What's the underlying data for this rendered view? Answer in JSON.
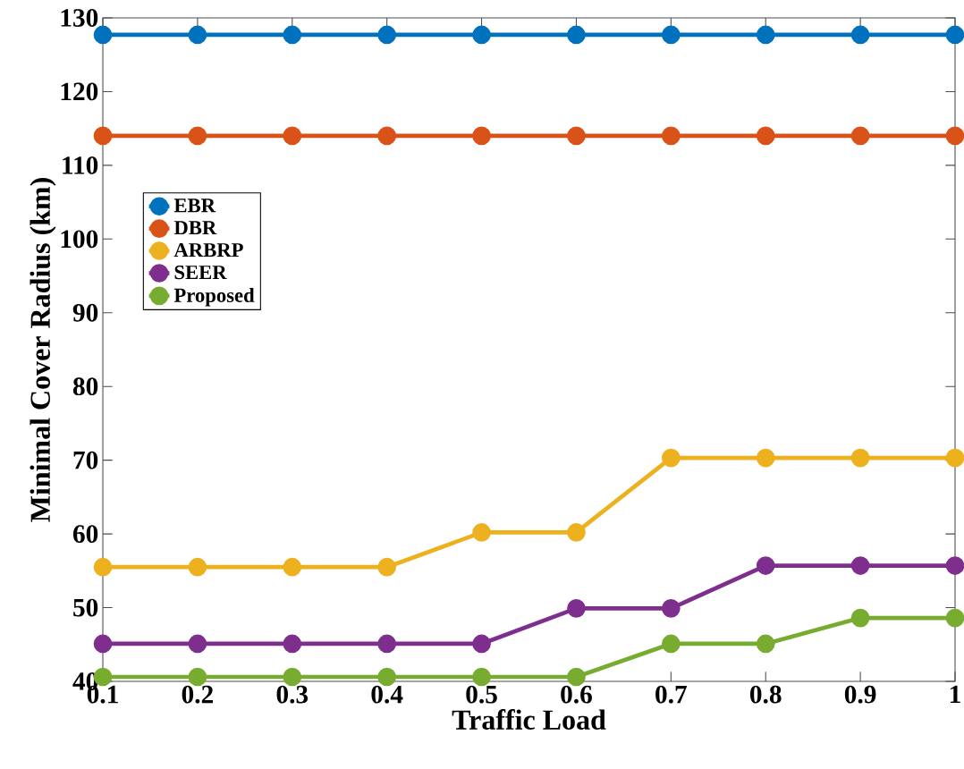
{
  "chart_data": {
    "type": "line",
    "xlabel": "Traffic Load",
    "ylabel": "Minimal Cover Radius (km)",
    "x": [
      0.1,
      0.2,
      0.3,
      0.4,
      0.5,
      0.6,
      0.7,
      0.8,
      0.9,
      1
    ],
    "series": [
      {
        "name": "EBR",
        "color": "#0072bd",
        "values": [
          127.7,
          127.7,
          127.7,
          127.7,
          127.7,
          127.7,
          127.7,
          127.7,
          127.7,
          127.7
        ]
      },
      {
        "name": "DBR",
        "color": "#d95319",
        "values": [
          114,
          114,
          114,
          114,
          114,
          114,
          114,
          114,
          114,
          114
        ]
      },
      {
        "name": "ARBRP",
        "color": "#edb120",
        "values": [
          55.5,
          55.5,
          55.5,
          55.5,
          60.2,
          60.2,
          70.3,
          70.3,
          70.3,
          70.3
        ]
      },
      {
        "name": "SEER",
        "color": "#7e2f8e",
        "values": [
          45.1,
          45.1,
          45.1,
          45.1,
          45.1,
          49.9,
          49.9,
          55.7,
          55.7,
          55.7
        ]
      },
      {
        "name": "Proposed",
        "color": "#77ac30",
        "values": [
          40.6,
          40.6,
          40.6,
          40.6,
          40.6,
          40.6,
          45.1,
          45.1,
          48.6,
          48.6
        ]
      }
    ],
    "xlim": [
      0.1,
      1
    ],
    "ylim": [
      40,
      130
    ],
    "xticks": [
      0.1,
      0.2,
      0.3,
      0.4,
      0.5,
      0.6,
      0.7,
      0.8,
      0.9,
      1
    ],
    "yticks": [
      40,
      50,
      60,
      70,
      80,
      90,
      100,
      110,
      120,
      130
    ],
    "grid": false,
    "legend": "left",
    "marker": "circle",
    "line_style": "solid"
  }
}
